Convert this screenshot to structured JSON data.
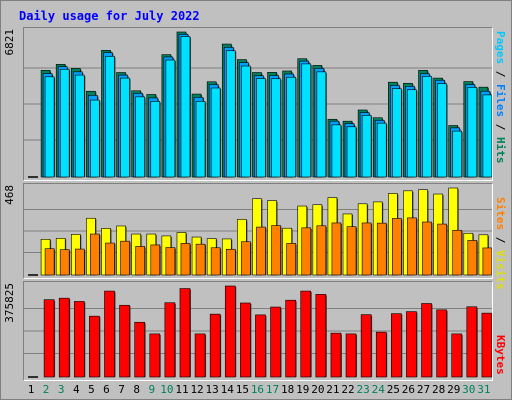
{
  "chart_data": {
    "type": "bar",
    "title": "Daily usage for July 2022",
    "days": [
      "1",
      "2",
      "3",
      "4",
      "5",
      "6",
      "7",
      "8",
      "9",
      "10",
      "11",
      "12",
      "13",
      "14",
      "15",
      "16",
      "17",
      "18",
      "19",
      "20",
      "21",
      "22",
      "23",
      "24",
      "25",
      "26",
      "27",
      "28",
      "29",
      "30",
      "31"
    ],
    "weekend_days": [
      "2",
      "3",
      "9",
      "10",
      "16",
      "17",
      "23",
      "24",
      "30",
      "31"
    ],
    "ymax": {
      "hits": "6821",
      "visits": "468",
      "kbytes": "375825"
    },
    "right_labels": {
      "pages": "Pages",
      "files": "Files",
      "hits": "Hits",
      "sep": " / ",
      "sites": "Sites",
      "visits": "Visits",
      "kbytes": "KBytes"
    },
    "series": [
      {
        "name": "Hits",
        "color": "#00805c",
        "values": [
          0,
          4950,
          5230,
          5040,
          3980,
          5880,
          4850,
          4000,
          3830,
          5680,
          6730,
          3850,
          4420,
          6170,
          5450,
          4850,
          4860,
          4920,
          5490,
          5180,
          2680,
          2590,
          3110,
          2750,
          4400,
          4350,
          4950,
          4590,
          2390,
          4430,
          4170
        ]
      },
      {
        "name": "Files",
        "color": "#00a0ff",
        "values": [
          0,
          4800,
          5120,
          4880,
          3790,
          5770,
          4730,
          3880,
          3670,
          5570,
          6620,
          3700,
          4290,
          6020,
          5310,
          4700,
          4710,
          4780,
          5380,
          5040,
          2590,
          2480,
          2990,
          2630,
          4250,
          4210,
          4790,
          4490,
          2280,
          4290,
          3980
        ]
      },
      {
        "name": "Pages",
        "color": "#00e0ff",
        "values": [
          0,
          4650,
          5000,
          4730,
          3570,
          5600,
          4590,
          3720,
          3510,
          5430,
          6520,
          3510,
          4130,
          5860,
          5150,
          4570,
          4560,
          4630,
          5250,
          4880,
          2420,
          2330,
          2860,
          2500,
          4100,
          4050,
          4670,
          4330,
          2130,
          4160,
          3810
        ]
      },
      {
        "name": "Visits",
        "color": "#ffff00",
        "values": [
          0,
          190,
          195,
          216,
          302,
          248,
          261,
          218,
          218,
          208,
          226,
          202,
          194,
          192,
          296,
          406,
          396,
          249,
          367,
          374,
          412,
          325,
          379,
          389,
          434,
          448,
          454,
          431,
          463,
          222,
          214
        ]
      },
      {
        "name": "Sites",
        "color": "#ff8000",
        "values": [
          0,
          140,
          135,
          138,
          218,
          170,
          180,
          152,
          160,
          146,
          168,
          164,
          145,
          137,
          177,
          255,
          263,
          168,
          251,
          262,
          277,
          257,
          277,
          276,
          301,
          304,
          282,
          271,
          238,
          184,
          144
        ]
      },
      {
        "name": "KBytes",
        "color": "#ff0000",
        "values": [
          0,
          305000,
          311000,
          298000,
          240000,
          339000,
          283000,
          216000,
          170000,
          293000,
          349000,
          170000,
          248000,
          359000,
          292000,
          245000,
          276000,
          303000,
          339000,
          326000,
          173000,
          170000,
          246000,
          177000,
          250000,
          258000,
          290000,
          265000,
          170000,
          277000,
          252000
        ]
      }
    ]
  }
}
